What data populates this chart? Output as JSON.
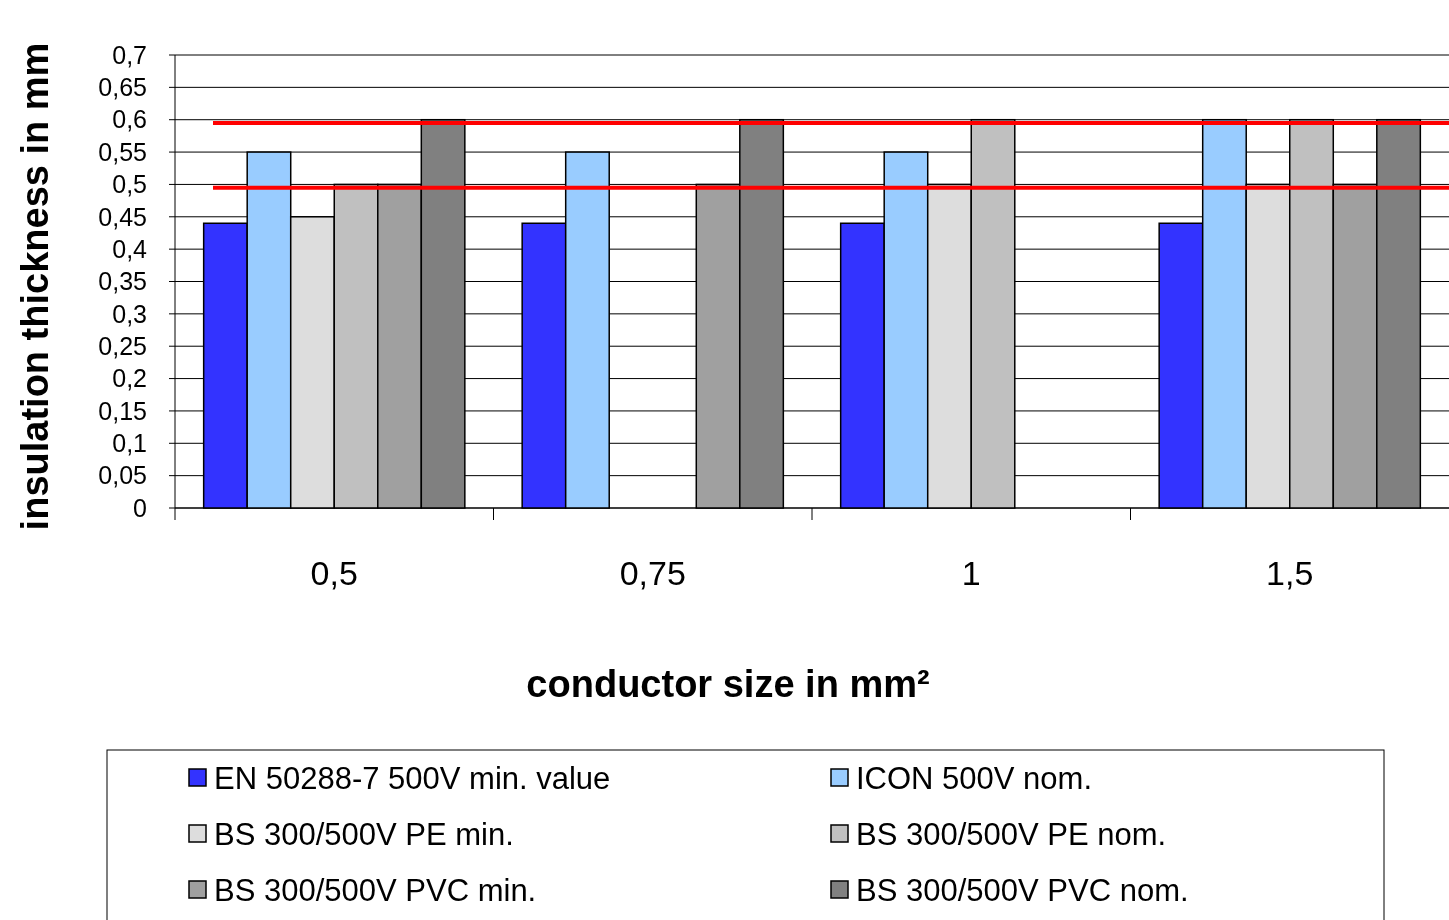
{
  "chart_data": {
    "type": "bar",
    "xlabel": "conductor size in mm²",
    "ylabel": "insulation thickness in mm",
    "categories": [
      "0,5",
      "0,75",
      "1",
      "1,5"
    ],
    "series": [
      {
        "name": "EN 50288-7 500V min. value",
        "color": "#3333ff",
        "values": [
          0.44,
          0.44,
          0.44,
          0.44
        ]
      },
      {
        "name": "ICON 500V nom.",
        "color": "#99ccff",
        "values": [
          0.55,
          0.55,
          0.55,
          0.6
        ]
      },
      {
        "name": "BS 300/500V PE min.",
        "color": "#dddddd",
        "values": [
          0.45,
          null,
          0.5,
          0.5
        ]
      },
      {
        "name": "BS 300/500V PE nom.",
        "color": "#c0c0c0",
        "values": [
          0.5,
          null,
          0.6,
          0.6
        ]
      },
      {
        "name": "BS 300/500V PVC min.",
        "color": "#a0a0a0",
        "values": [
          0.5,
          0.5,
          null,
          0.5
        ]
      },
      {
        "name": "BS 300/500V PVC nom.",
        "color": "#808080",
        "values": [
          0.6,
          0.6,
          null,
          0.6
        ]
      }
    ],
    "ylim": [
      0,
      0.7
    ],
    "yticks": [
      {
        "value": 0,
        "label": "0"
      },
      {
        "value": 0.05,
        "label": "0,05"
      },
      {
        "value": 0.1,
        "label": "0,1"
      },
      {
        "value": 0.15,
        "label": "0,15"
      },
      {
        "value": 0.2,
        "label": "0,2"
      },
      {
        "value": 0.25,
        "label": "0,25"
      },
      {
        "value": 0.3,
        "label": "0,3"
      },
      {
        "value": 0.35,
        "label": "0,35"
      },
      {
        "value": 0.4,
        "label": "0,4"
      },
      {
        "value": 0.45,
        "label": "0,45"
      },
      {
        "value": 0.5,
        "label": "0,5"
      },
      {
        "value": 0.55,
        "label": "0,55"
      },
      {
        "value": 0.6,
        "label": "0,6"
      },
      {
        "value": 0.65,
        "label": "0,65"
      },
      {
        "value": 0.7,
        "label": "0,7"
      }
    ],
    "ref_lines": [
      {
        "axis": "y",
        "value": 0.595,
        "color": "#ff0000"
      },
      {
        "axis": "y",
        "value": 0.495,
        "color": "#ff0000"
      }
    ],
    "grid": "y",
    "legend": "bottom"
  }
}
